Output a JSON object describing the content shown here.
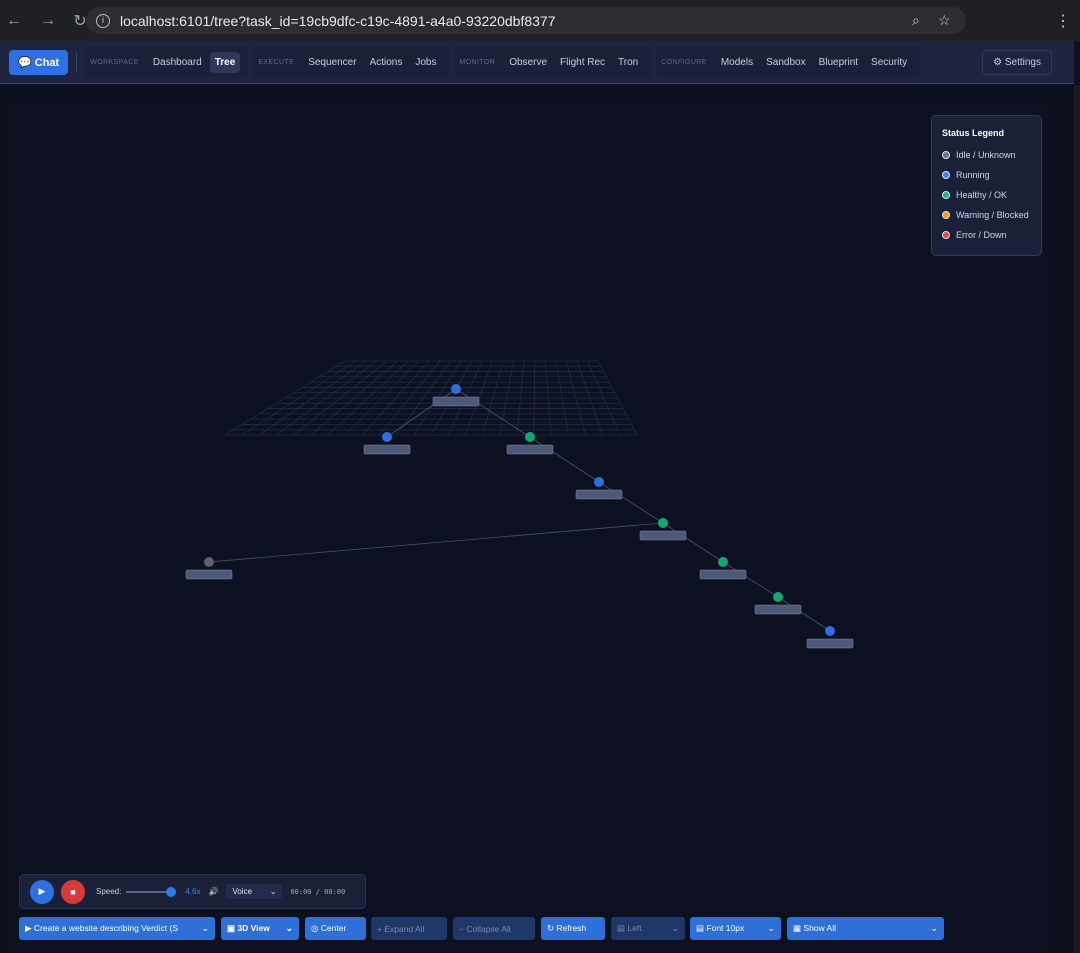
{
  "browser": {
    "url": "localhost:6101/tree?task_id=19cb9dfc-c19c-4891-a4a0-93220dbf8377"
  },
  "nav": {
    "chat": "Chat",
    "groups": [
      {
        "label": "WORKSPACE",
        "items": [
          "Dashboard",
          "Tree"
        ]
      },
      {
        "label": "EXECUTE",
        "items": [
          "Sequencer",
          "Actions",
          "Jobs"
        ]
      },
      {
        "label": "MONITOR",
        "items": [
          "Observe",
          "Flight Rec",
          "Tron"
        ]
      },
      {
        "label": "CONFIGURE",
        "items": [
          "Models",
          "Sandbox",
          "Blueprint",
          "Security"
        ]
      }
    ],
    "active": "Tree",
    "settings": "Settings"
  },
  "legend": {
    "title": "Status Legend",
    "items": [
      {
        "label": "Idle / Unknown",
        "color": "#6b7280"
      },
      {
        "label": "Running",
        "color": "#3b82f6"
      },
      {
        "label": "Healthy / OK",
        "color": "#10b981"
      },
      {
        "label": "Warning / Blocked",
        "color": "#f59e0b"
      },
      {
        "label": "Error / Down",
        "color": "#ef4444"
      }
    ]
  },
  "tree": {
    "nodes": [
      {
        "id": 1,
        "status": "running"
      },
      {
        "id": 2,
        "status": "running",
        "parent": 1
      },
      {
        "id": 3,
        "status": "healthy",
        "parent": 1
      },
      {
        "id": 4,
        "status": "running",
        "parent": 3
      },
      {
        "id": 5,
        "status": "healthy",
        "parent": 4
      },
      {
        "id": 6,
        "status": "idle",
        "parent": 5
      },
      {
        "id": 7,
        "status": "healthy",
        "parent": 5
      },
      {
        "id": 8,
        "status": "healthy",
        "parent": 7
      },
      {
        "id": 9,
        "status": "running",
        "parent": 8
      }
    ]
  },
  "player": {
    "speed_label": "Speed:",
    "speed": "4.6x",
    "speed_fraction": 0.9,
    "voice": "Voice",
    "time": "00:00 / 00:00"
  },
  "toolbar": {
    "task": "Create a website describing Verdict (S",
    "view": "3D View",
    "center": "Center",
    "expand": "Expand All",
    "collapse": "Collapse All",
    "refresh": "Refresh",
    "direction": "Left",
    "font": "Font 10px",
    "filter": "Show All"
  }
}
